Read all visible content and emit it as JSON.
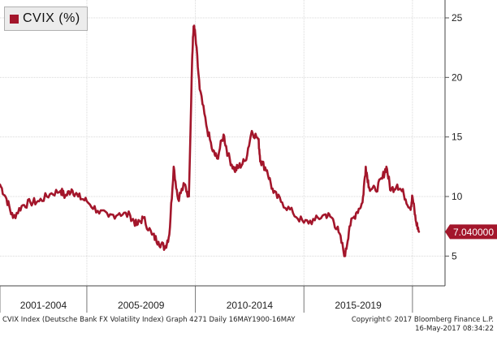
{
  "chart_data": {
    "type": "line",
    "title": "CVIX (%)",
    "series": [
      {
        "name": "CVIX (%)",
        "color": "#a3162b",
        "points": [
          [
            2000.0,
            11.0
          ],
          [
            2000.3,
            9.8
          ],
          [
            2000.6,
            8.2
          ],
          [
            2001.0,
            9.2
          ],
          [
            2001.4,
            9.5
          ],
          [
            2001.8,
            9.6
          ],
          [
            2002.3,
            10.2
          ],
          [
            2002.8,
            10.5
          ],
          [
            2003.0,
            10.0
          ],
          [
            2003.3,
            10.6
          ],
          [
            2003.6,
            10.0
          ],
          [
            2004.0,
            9.6
          ],
          [
            2004.5,
            8.8
          ],
          [
            2005.0,
            8.3
          ],
          [
            2005.5,
            8.6
          ],
          [
            2006.0,
            8.4
          ],
          [
            2006.3,
            7.6
          ],
          [
            2006.6,
            8.2
          ],
          [
            2007.0,
            6.8
          ],
          [
            2007.3,
            6.2
          ],
          [
            2007.6,
            5.7
          ],
          [
            2007.8,
            6.8
          ],
          [
            2008.0,
            12.5
          ],
          [
            2008.2,
            9.8
          ],
          [
            2008.5,
            11.0
          ],
          [
            2008.7,
            10.0
          ],
          [
            2008.85,
            21.5
          ],
          [
            2008.92,
            24.3
          ],
          [
            2009.0,
            23.5
          ],
          [
            2009.2,
            19.0
          ],
          [
            2009.5,
            16.0
          ],
          [
            2009.8,
            13.8
          ],
          [
            2010.0,
            13.2
          ],
          [
            2010.3,
            15.2
          ],
          [
            2010.5,
            13.5
          ],
          [
            2010.8,
            12.2
          ],
          [
            2011.0,
            12.5
          ],
          [
            2011.3,
            13.0
          ],
          [
            2011.6,
            15.5
          ],
          [
            2011.9,
            14.8
          ],
          [
            2012.0,
            13.0
          ],
          [
            2012.3,
            12.2
          ],
          [
            2012.6,
            10.3
          ],
          [
            2013.0,
            9.5
          ],
          [
            2013.5,
            8.6
          ],
          [
            2014.0,
            7.8
          ],
          [
            2014.5,
            8.0
          ],
          [
            2015.0,
            8.5
          ],
          [
            2015.3,
            8.2
          ],
          [
            2015.6,
            7.0
          ],
          [
            2015.9,
            5.0
          ],
          [
            2016.1,
            7.5
          ],
          [
            2016.4,
            8.6
          ],
          [
            2016.7,
            9.5
          ],
          [
            2016.85,
            12.5
          ],
          [
            2017.0,
            10.8
          ],
          [
            2017.3,
            10.5
          ],
          [
            2017.6,
            11.5
          ],
          [
            2017.8,
            12.5
          ],
          [
            2018.0,
            10.5
          ],
          [
            2018.3,
            11.0
          ],
          [
            2018.6,
            10.2
          ],
          [
            2018.9,
            9.0
          ],
          [
            2019.0,
            10.0
          ],
          [
            2019.15,
            8.0
          ],
          [
            2019.3,
            7.04
          ]
        ]
      }
    ],
    "last_value_label": "7.040000",
    "y_ticks": [
      5,
      10,
      15,
      20,
      25
    ],
    "ylim": [
      2.5,
      26.5
    ],
    "xlim": [
      2000.0,
      2020.5
    ],
    "x_period_boundaries": [
      2000.0,
      2004.0,
      2009.0,
      2014.0,
      2019.0
    ],
    "x_period_labels": [
      "2001-2004",
      "2005-2009",
      "2010-2014",
      "2015-2019"
    ],
    "grid": true,
    "legend": "top-left"
  },
  "footer": {
    "left": "CVIX Index (Deutsche Bank FX Volatility Index) Graph 4271  Daily 16MAY1900-16MAY",
    "right_line1": "Copyright© 2017 Bloomberg Finance L.P.",
    "right_line2": "16-May-2017 08:34:22"
  }
}
